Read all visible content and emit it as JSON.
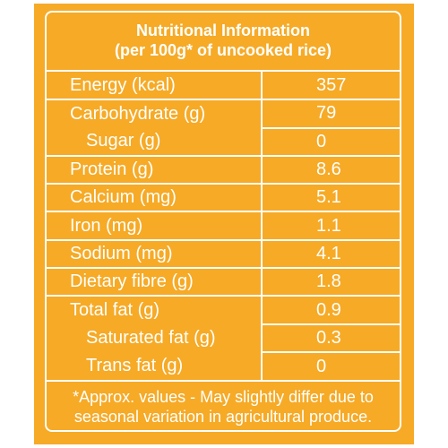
{
  "header": {
    "title": "Nutritional Information",
    "subtitle": "(per 100g* of uncooked rice)"
  },
  "rows": [
    {
      "name": "Energy (kcal)",
      "value": "357"
    },
    {
      "name": "Carbohydrate (g)",
      "value": "79"
    },
    {
      "name": "Sugar (g)",
      "value": "0"
    },
    {
      "name": "Protein (g)",
      "value": "8.6"
    },
    {
      "name": "Calcium (mg)",
      "value": "5.1"
    },
    {
      "name": "Iron (mg)",
      "value": "1.1"
    },
    {
      "name": "Sodium (mg)",
      "value": "4.1"
    },
    {
      "name": "Dietary fibre (g)",
      "value": "1.8"
    },
    {
      "name": "Total fat (g)",
      "value": "0.9"
    },
    {
      "name": "Saturated fat (g)",
      "value": "0.3"
    },
    {
      "name": "Trans fat (g)",
      "value": "0"
    }
  ],
  "footnote": {
    "line1": "*Approx. values - May slightly differ due to",
    "line2": "seasonal variation in agricultural produce."
  },
  "colors": {
    "background": "#f6aa26",
    "text": "#ffffff",
    "lines": "#ffffff"
  }
}
